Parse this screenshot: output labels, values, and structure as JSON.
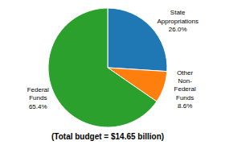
{
  "chart_data": {
    "type": "pie",
    "title": "(Total budget = $14.65 billion)",
    "categories": [
      "State\nAppropriations\n26.0%",
      "Other\nNon-\nFederal\nFunds\n8.6%",
      "Federal\nFunds\n65.4%"
    ],
    "values": [
      26.0,
      8.6,
      65.4
    ]
  }
}
